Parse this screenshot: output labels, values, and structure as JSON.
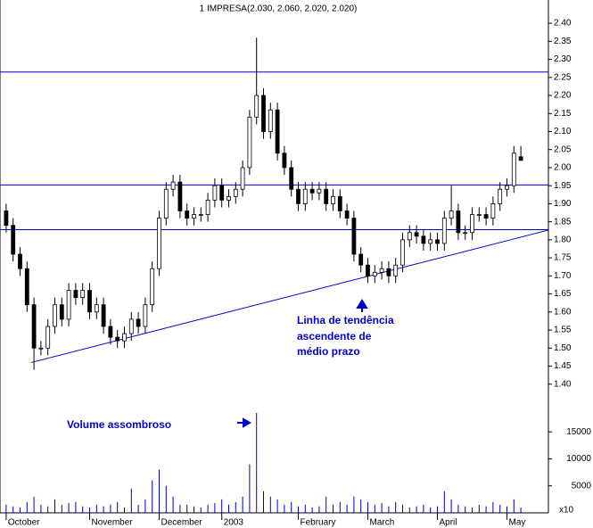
{
  "chart_data": {
    "type": "candlestick",
    "title": "1 IMPRESA(2.030, 2.060, 2.020, 2.020)",
    "categories": [
      "October",
      null,
      null,
      null,
      null,
      null,
      null,
      null,
      null,
      null,
      null,
      null,
      "November",
      null,
      null,
      null,
      null,
      null,
      null,
      null,
      null,
      null,
      "December",
      null,
      null,
      null,
      null,
      null,
      null,
      null,
      null,
      "2003",
      null,
      null,
      null,
      null,
      null,
      null,
      null,
      null,
      null,
      null,
      "February",
      null,
      null,
      null,
      null,
      null,
      null,
      null,
      null,
      null,
      "March",
      null,
      null,
      null,
      null,
      null,
      null,
      null,
      null,
      null,
      "April",
      null,
      null,
      null,
      null,
      null,
      null,
      null,
      null,
      null,
      "May",
      null,
      null
    ],
    "open": [
      1.88,
      1.84,
      1.76,
      1.72,
      1.62,
      1.5,
      1.5,
      1.56,
      1.62,
      1.58,
      1.66,
      1.64,
      1.66,
      1.6,
      1.62,
      1.56,
      1.53,
      1.52,
      1.54,
      1.58,
      1.56,
      1.62,
      1.72,
      1.86,
      1.94,
      1.96,
      1.88,
      1.86,
      1.87,
      1.87,
      1.91,
      1.95,
      1.91,
      1.92,
      1.94,
      2.0,
      2.14,
      2.2,
      2.1,
      2.16,
      2.04,
      2.0,
      1.94,
      1.9,
      1.94,
      1.93,
      1.94,
      1.9,
      1.92,
      1.88,
      1.86,
      1.76,
      1.73,
      1.7,
      1.71,
      1.72,
      1.7,
      1.73,
      1.8,
      1.82,
      1.81,
      1.79,
      1.8,
      1.79,
      1.86,
      1.88,
      1.82,
      1.82,
      1.87,
      1.87,
      1.86,
      1.9,
      1.94,
      1.95,
      2.03
    ],
    "high": [
      1.9,
      1.86,
      1.78,
      1.74,
      1.64,
      1.52,
      1.58,
      1.64,
      1.64,
      1.68,
      1.68,
      1.68,
      1.68,
      1.64,
      1.64,
      1.58,
      1.55,
      1.56,
      1.6,
      1.6,
      1.64,
      1.74,
      1.88,
      1.96,
      1.98,
      1.98,
      1.9,
      1.89,
      1.89,
      1.93,
      1.97,
      1.97,
      1.94,
      1.96,
      2.02,
      2.16,
      2.36,
      2.22,
      2.18,
      2.18,
      2.06,
      2.02,
      1.96,
      1.96,
      1.96,
      1.96,
      1.96,
      1.94,
      1.94,
      1.9,
      1.88,
      1.78,
      1.75,
      1.73,
      1.74,
      1.74,
      1.75,
      1.82,
      1.84,
      1.84,
      1.83,
      1.82,
      1.82,
      1.88,
      1.95,
      1.9,
      1.84,
      1.89,
      1.89,
      1.89,
      1.92,
      1.96,
      1.97,
      2.06,
      2.06
    ],
    "low": [
      1.82,
      1.74,
      1.7,
      1.6,
      1.44,
      1.48,
      1.48,
      1.54,
      1.56,
      1.56,
      1.62,
      1.62,
      1.58,
      1.58,
      1.54,
      1.51,
      1.5,
      1.5,
      1.52,
      1.54,
      1.54,
      1.6,
      1.7,
      1.84,
      1.92,
      1.86,
      1.84,
      1.84,
      1.85,
      1.85,
      1.89,
      1.89,
      1.89,
      1.9,
      1.92,
      1.98,
      2.12,
      2.08,
      2.08,
      2.02,
      1.98,
      1.92,
      1.88,
      1.88,
      1.91,
      1.91,
      1.88,
      1.88,
      1.86,
      1.84,
      1.74,
      1.71,
      1.68,
      1.68,
      1.69,
      1.68,
      1.68,
      1.71,
      1.78,
      1.79,
      1.77,
      1.77,
      1.77,
      1.77,
      1.84,
      1.8,
      1.8,
      1.8,
      1.85,
      1.84,
      1.84,
      1.88,
      1.92,
      1.93,
      2.02
    ],
    "close": [
      1.84,
      1.76,
      1.72,
      1.62,
      1.5,
      1.5,
      1.56,
      1.62,
      1.58,
      1.66,
      1.64,
      1.66,
      1.6,
      1.62,
      1.56,
      1.53,
      1.52,
      1.54,
      1.58,
      1.56,
      1.62,
      1.72,
      1.86,
      1.94,
      1.96,
      1.88,
      1.86,
      1.87,
      1.87,
      1.91,
      1.95,
      1.91,
      1.92,
      1.94,
      2.0,
      2.14,
      2.2,
      2.1,
      2.16,
      2.04,
      2.0,
      1.94,
      1.9,
      1.94,
      1.93,
      1.94,
      1.9,
      1.92,
      1.88,
      1.86,
      1.76,
      1.73,
      1.7,
      1.71,
      1.72,
      1.7,
      1.73,
      1.8,
      1.82,
      1.81,
      1.79,
      1.8,
      1.79,
      1.86,
      1.88,
      1.82,
      1.82,
      1.87,
      1.87,
      1.86,
      1.9,
      1.94,
      1.95,
      2.04,
      2.02
    ],
    "ylim": [
      1.34,
      2.42
    ],
    "yticks": [
      {
        "value": 1.4,
        "label": "1.40"
      },
      {
        "value": 1.45,
        "label": "1.45"
      },
      {
        "value": 1.5,
        "label": "1.50"
      },
      {
        "value": 1.55,
        "label": "1.55"
      },
      {
        "value": 1.6,
        "label": "1.60"
      },
      {
        "value": 1.65,
        "label": "1.65"
      },
      {
        "value": 1.7,
        "label": "1.70"
      },
      {
        "value": 1.75,
        "label": "1.75"
      },
      {
        "value": 1.8,
        "label": "1.80"
      },
      {
        "value": 1.85,
        "label": "1.85"
      },
      {
        "value": 1.9,
        "label": "1.90"
      },
      {
        "value": 1.95,
        "label": "1.95"
      },
      {
        "value": 2.0,
        "label": "2.00"
      },
      {
        "value": 2.05,
        "label": "2.05"
      },
      {
        "value": 2.1,
        "label": "2.10"
      },
      {
        "value": 2.15,
        "label": "2.15"
      },
      {
        "value": 2.2,
        "label": "2.20"
      },
      {
        "value": 2.25,
        "label": "2.25"
      },
      {
        "value": 2.3,
        "label": "2.30"
      },
      {
        "value": 2.35,
        "label": "2.35"
      },
      {
        "value": 2.4,
        "label": "2.40"
      }
    ],
    "up_color": "#ffffff",
    "down_color": "#000000",
    "line_color": "#0000cc",
    "hlines": [
      2.265,
      1.952,
      1.828
    ],
    "trendline": [
      1.46,
      1.827
    ],
    "annotations": [
      "Linha de tendência",
      "ascendente de",
      "médio prazo",
      "Volume assombroso"
    ],
    "volume": {
      "values": [
        1500,
        1200,
        1000,
        2000,
        3000,
        1500,
        1200,
        2500,
        1500,
        1800,
        2000,
        1200,
        1000,
        1500,
        1200,
        1500,
        2000,
        1000,
        4500,
        1500,
        2500,
        6000,
        8000,
        5000,
        3000,
        1500,
        1500,
        1200,
        1000,
        1500,
        1800,
        2500,
        1500,
        2000,
        3000,
        9000,
        18500,
        4000,
        3000,
        2500,
        1500,
        2000,
        1200,
        1500,
        1000,
        1200,
        3000,
        1500,
        2000,
        1500,
        3000,
        2500,
        2000,
        1500,
        1800,
        1200,
        2000,
        1500,
        1000,
        1200,
        1500,
        1000,
        1200,
        4000,
        2500,
        1500,
        1200,
        1000,
        1500,
        1200,
        2000,
        1500,
        1200,
        2500,
        1000
      ],
      "ylim": [
        0,
        19000
      ],
      "yticks": [
        5000,
        10000,
        15000
      ],
      "color": "#0000cc",
      "unit_label": "x10"
    }
  }
}
